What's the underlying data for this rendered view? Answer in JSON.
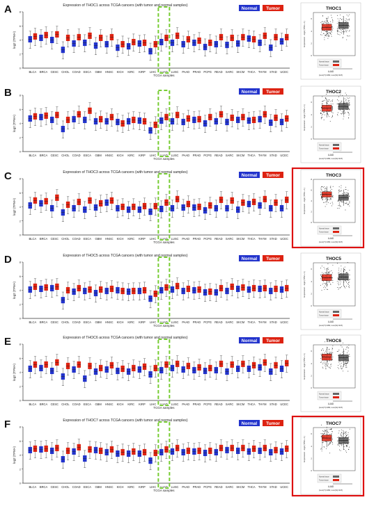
{
  "figure": {
    "colors": {
      "normal": "#2233cc",
      "tumor": "#dd2211",
      "highlight_box": "#77cc33",
      "panel_border": "#dd1111"
    },
    "legend": {
      "normal": "Normal",
      "tumor": "Tumor"
    },
    "axes": {
      "ylabel": "log2 (TPM+)",
      "xlabel": "TCGA samples"
    },
    "cancers": [
      "BLCA",
      "BRCA",
      "CESC",
      "CHOL",
      "COAD",
      "ESCA",
      "GBM",
      "HNSC",
      "KICH",
      "KIRC",
      "KIRP",
      "LIHC",
      "LUAD",
      "LUSC",
      "PAAD",
      "PRAD",
      "PCPG",
      "READ",
      "SARC",
      "SKCM",
      "THCA",
      "THYM",
      "STAD",
      "UCEC"
    ],
    "highlight_cancer": "LUAD",
    "boxplot_strings": {
      "title": "LUAD",
      "ylabel": "Expression - log2 (TPM + 1)",
      "counts": "(num(T)=483; num(N)=347)",
      "legend_normal": "Normal tissue",
      "legend_tumor": "Tumor tissue"
    }
  },
  "chart_data": [
    {
      "label": "A",
      "gene": "THOC1",
      "title": "Expression of THOC1 across TCGA cancers (with tumor and normal samples)",
      "type": "boxplot",
      "highlight_red_border": false,
      "normal_median": [
        4.1,
        4.3,
        4.0,
        2.6,
        3.5,
        3.6,
        3.2,
        3.4,
        2.9,
        3.1,
        3.5,
        2.4,
        3.7,
        3.6,
        3.4,
        3.6,
        3.0,
        3.4,
        3.3,
        3.5,
        4.2,
        3.6,
        2.9,
        3.8
      ],
      "tumor_median": [
        4.5,
        4.7,
        4.8,
        4.3,
        4.4,
        4.6,
        4.3,
        4.4,
        3.4,
        3.7,
        3.6,
        3.4,
        4.3,
        4.6,
        4.1,
        3.9,
        3.6,
        4.4,
        4.3,
        4.4,
        4.1,
        4.6,
        4.4,
        4.4
      ],
      "inset": {
        "gene": "THOC1",
        "tumor_median": 4.6,
        "normal_median": 4.9,
        "ylim": [
          0,
          7
        ],
        "order": [
          "tumor",
          "normal"
        ]
      }
    },
    {
      "label": "B",
      "gene": "THOC2",
      "title": "",
      "type": "boxplot",
      "highlight_red_border": false,
      "normal_median": [
        4.7,
        4.9,
        4.5,
        3.2,
        4.6,
        4.5,
        4.3,
        4.3,
        4.2,
        4.3,
        4.4,
        3.0,
        4.4,
        4.3,
        4.2,
        4.5,
        4.0,
        4.3,
        4.2,
        4.5,
        4.4,
        4.6,
        4.1,
        4.2
      ],
      "tumor_median": [
        5.0,
        5.1,
        5.2,
        4.5,
        5.3,
        5.8,
        4.6,
        4.9,
        4.0,
        4.5,
        4.3,
        3.8,
        4.9,
        5.2,
        4.7,
        4.6,
        4.9,
        5.3,
        4.8,
        4.9,
        4.5,
        5.3,
        4.8,
        4.7
      ],
      "inset": {
        "gene": "THOC2",
        "tumor_median": 5.0,
        "normal_median": 5.3,
        "ylim": [
          0,
          7
        ],
        "order": [
          "tumor",
          "normal"
        ]
      }
    },
    {
      "label": "C",
      "gene": "THOC3",
      "title": "Expression of THOC3 across TCGA cancers (with tumor and normal samples)",
      "type": "boxplot",
      "highlight_red_border": true,
      "normal_median": [
        4.2,
        4.5,
        3.8,
        3.2,
        3.8,
        3.6,
        3.9,
        4.6,
        3.8,
        3.6,
        3.6,
        3.3,
        3.7,
        3.8,
        3.9,
        3.9,
        3.5,
        3.8,
        3.8,
        3.6,
        4.4,
        4.2,
        3.8,
        3.8
      ],
      "tumor_median": [
        4.9,
        4.8,
        5.3,
        4.3,
        4.7,
        4.9,
        4.5,
        4.9,
        4.0,
        4.0,
        4.1,
        4.1,
        4.6,
        5.1,
        4.4,
        4.0,
        4.2,
        5.0,
        4.9,
        4.6,
        4.7,
        5.1,
        4.6,
        5.0
      ],
      "inset": {
        "gene": "THOC3",
        "tumor_median": 5.2,
        "normal_median": 4.6,
        "ylim": [
          0,
          8
        ],
        "order": [
          "tumor",
          "normal"
        ]
      }
    },
    {
      "label": "D",
      "gene": "THOC5",
      "title": "Expression of THOC5 across TCGA cancers (with tumor and normal samples)",
      "type": "boxplot",
      "highlight_red_border": false,
      "normal_median": [
        4.1,
        4.2,
        4.3,
        2.6,
        3.8,
        3.9,
        3.6,
        3.9,
        4.0,
        3.8,
        3.9,
        2.8,
        4.0,
        4.1,
        3.9,
        4.0,
        3.7,
        3.7,
        3.9,
        4.2,
        4.1,
        4.2,
        3.9,
        4.1
      ],
      "tumor_median": [
        4.5,
        4.4,
        4.5,
        4.0,
        4.3,
        4.1,
        4.1,
        4.2,
        3.9,
        3.9,
        4.0,
        3.5,
        4.4,
        4.6,
        4.2,
        4.1,
        3.8,
        4.3,
        4.5,
        4.4,
        4.3,
        4.3,
        4.2,
        4.3
      ],
      "inset": {
        "gene": "THOC5",
        "tumor_median": 4.6,
        "normal_median": 4.7,
        "ylim": [
          0,
          7
        ],
        "order": [
          "tumor",
          "normal"
        ]
      }
    },
    {
      "label": "E",
      "gene": "THOC6",
      "title": "Expression of THOC6 across TCGA cancers (with tumor and normal samples)",
      "type": "boxplot",
      "highlight_red_border": false,
      "normal_median": [
        4.5,
        4.6,
        4.2,
        3.4,
        4.4,
        3.1,
        4.1,
        4.4,
        4.2,
        4.1,
        4.4,
        3.7,
        4.3,
        4.6,
        4.4,
        4.3,
        4.2,
        4.3,
        4.1,
        4.5,
        4.5,
        4.7,
        4.1,
        4.5
      ],
      "tumor_median": [
        5.1,
        5.1,
        5.4,
        4.9,
        5.1,
        4.9,
        4.6,
        5.0,
        4.5,
        4.6,
        4.8,
        4.6,
        5.1,
        5.2,
        4.9,
        4.7,
        4.6,
        5.2,
        5.1,
        5.2,
        5.0,
        5.4,
        5.0,
        5.3
      ],
      "inset": {
        "gene": "THOC6",
        "tumor_median": 5.0,
        "normal_median": 4.9,
        "ylim": [
          0,
          7
        ],
        "order": [
          "tumor",
          "normal"
        ]
      }
    },
    {
      "label": "F",
      "gene": "THOC7",
      "title": "Expression of THOC7 across TCGA cancers (with tumor and normal samples)",
      "type": "boxplot",
      "highlight_red_border": true,
      "normal_median": [
        4.7,
        4.8,
        4.6,
        3.4,
        4.5,
        3.5,
        4.7,
        4.4,
        4.2,
        4.2,
        4.2,
        3.2,
        4.4,
        4.5,
        4.4,
        4.5,
        4.3,
        4.4,
        4.7,
        4.6,
        4.5,
        4.6,
        4.4,
        4.5
      ],
      "tumor_median": [
        4.9,
        4.9,
        5.0,
        4.6,
        5.1,
        4.8,
        4.6,
        4.8,
        4.4,
        4.5,
        4.4,
        4.3,
        4.8,
        5.0,
        4.6,
        4.6,
        4.6,
        5.0,
        5.0,
        5.0,
        4.9,
        5.0,
        4.7,
        4.9
      ],
      "inset": {
        "gene": "THOC7",
        "tumor_median": 5.3,
        "normal_median": 4.9,
        "ylim": [
          0,
          7
        ],
        "order": [
          "tumor",
          "normal"
        ]
      }
    }
  ]
}
